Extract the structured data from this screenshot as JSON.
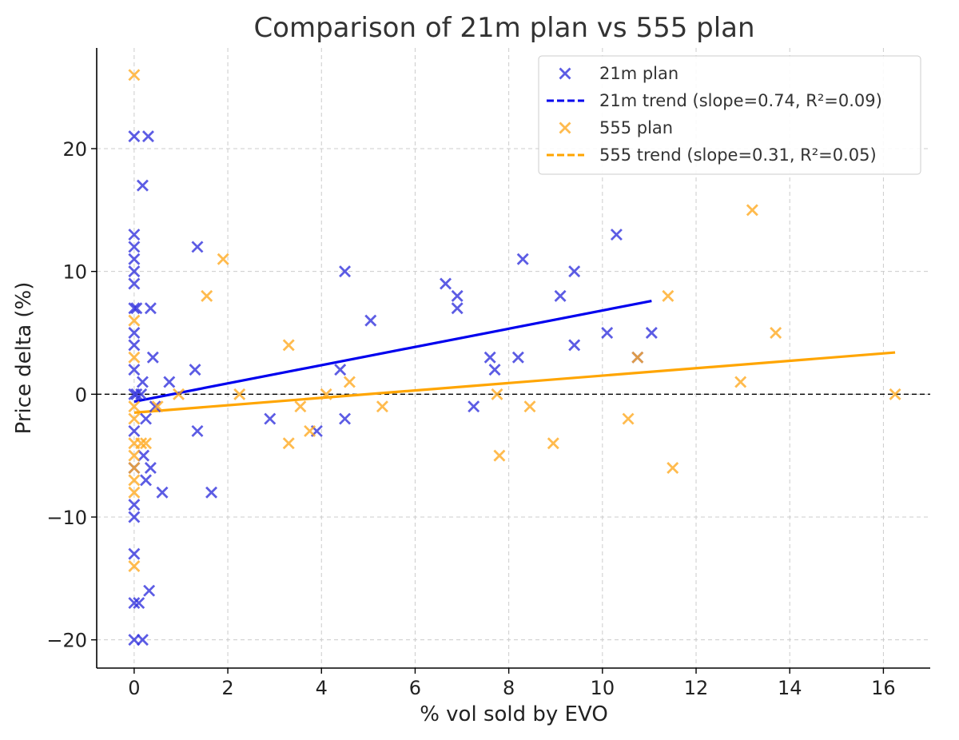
{
  "chart_data": {
    "type": "scatter",
    "title": "Comparison of 21m plan vs 555 plan",
    "xlabel": "% vol sold by EVO",
    "ylabel": "Price delta (%)",
    "xlim": [
      -0.8,
      17.0
    ],
    "ylim": [
      -22.3,
      28.2
    ],
    "xticks": [
      0,
      2,
      4,
      6,
      8,
      10,
      12,
      14,
      16
    ],
    "yticks": [
      -20,
      -10,
      0,
      10,
      20
    ],
    "xtick_labels": [
      "0",
      "2",
      "4",
      "6",
      "8",
      "10",
      "12",
      "14",
      "16"
    ],
    "ytick_labels": [
      "−20",
      "−10",
      "0",
      "10",
      "20"
    ],
    "grid": true,
    "zero_line": true,
    "legend_position": "top-right",
    "series": [
      {
        "name": "21m plan",
        "marker": "x",
        "color": "#3333dd",
        "points": [
          [
            0.0,
            21
          ],
          [
            0.3,
            21
          ],
          [
            0.18,
            17
          ],
          [
            0.0,
            13
          ],
          [
            0.0,
            12
          ],
          [
            0.0,
            11
          ],
          [
            0.0,
            10
          ],
          [
            0.0,
            9
          ],
          [
            0.0,
            7
          ],
          [
            0.05,
            7
          ],
          [
            0.35,
            7
          ],
          [
            0.0,
            5
          ],
          [
            0.0,
            4
          ],
          [
            0.0,
            2
          ],
          [
            0.0,
            0
          ],
          [
            0.05,
            0
          ],
          [
            0.15,
            0
          ],
          [
            0.18,
            1
          ],
          [
            0.4,
            3
          ],
          [
            0.75,
            1
          ],
          [
            1.3,
            2
          ],
          [
            1.35,
            12
          ],
          [
            0.45,
            -1
          ],
          [
            0.25,
            -2
          ],
          [
            0.0,
            -3
          ],
          [
            0.2,
            -5
          ],
          [
            0.0,
            -6
          ],
          [
            0.35,
            -6
          ],
          [
            0.25,
            -7
          ],
          [
            0.6,
            -8
          ],
          [
            1.35,
            -3
          ],
          [
            1.65,
            -8
          ],
          [
            0.0,
            -9
          ],
          [
            0.0,
            -10
          ],
          [
            0.0,
            -13
          ],
          [
            0.32,
            -16
          ],
          [
            0.0,
            -17
          ],
          [
            0.1,
            -17
          ],
          [
            0.0,
            -20
          ],
          [
            0.18,
            -20
          ],
          [
            2.9,
            -2
          ],
          [
            3.9,
            -3
          ],
          [
            4.4,
            2
          ],
          [
            4.5,
            10
          ],
          [
            4.5,
            -2
          ],
          [
            5.05,
            6
          ],
          [
            6.65,
            9
          ],
          [
            6.9,
            8
          ],
          [
            6.9,
            7
          ],
          [
            7.25,
            -1
          ],
          [
            7.6,
            3
          ],
          [
            7.7,
            2
          ],
          [
            8.2,
            3
          ],
          [
            8.3,
            11
          ],
          [
            9.1,
            8
          ],
          [
            9.4,
            10
          ],
          [
            9.4,
            4
          ],
          [
            10.1,
            5
          ],
          [
            10.3,
            13
          ],
          [
            10.75,
            3
          ],
          [
            11.05,
            5
          ]
        ]
      },
      {
        "name": "555 plan",
        "marker": "x",
        "color": "#ffaa22",
        "points": [
          [
            0.0,
            26
          ],
          [
            0.0,
            6
          ],
          [
            0.0,
            3
          ],
          [
            0.0,
            -1
          ],
          [
            0.0,
            -2
          ],
          [
            0.0,
            -4
          ],
          [
            0.0,
            -5
          ],
          [
            0.0,
            -6
          ],
          [
            0.0,
            -7
          ],
          [
            0.0,
            -8
          ],
          [
            0.0,
            -14
          ],
          [
            0.15,
            -4
          ],
          [
            0.25,
            -4
          ],
          [
            0.5,
            -1
          ],
          [
            0.95,
            0
          ],
          [
            1.55,
            8
          ],
          [
            1.9,
            11
          ],
          [
            2.25,
            0
          ],
          [
            3.3,
            4
          ],
          [
            3.3,
            -4
          ],
          [
            3.55,
            -1
          ],
          [
            3.75,
            -3
          ],
          [
            4.1,
            0
          ],
          [
            4.6,
            1
          ],
          [
            5.3,
            -1
          ],
          [
            7.75,
            0
          ],
          [
            7.8,
            -5
          ],
          [
            8.45,
            -1
          ],
          [
            8.95,
            -4
          ],
          [
            10.55,
            -2
          ],
          [
            10.75,
            3
          ],
          [
            11.4,
            8
          ],
          [
            11.5,
            -6
          ],
          [
            12.95,
            1
          ],
          [
            13.2,
            15
          ],
          [
            13.7,
            5
          ],
          [
            16.25,
            0
          ]
        ]
      }
    ],
    "trendlines": [
      {
        "name": "21m trend (slope=0.74, R²=0.09)",
        "color": "#0000ee",
        "x": [
          0.0,
          11.05
        ],
        "y": [
          -0.6,
          7.6
        ]
      },
      {
        "name": "555 trend (slope=0.31, R²=0.05)",
        "color": "#ffa500",
        "x": [
          0.0,
          16.25
        ],
        "y": [
          -1.5,
          3.4
        ]
      }
    ]
  }
}
